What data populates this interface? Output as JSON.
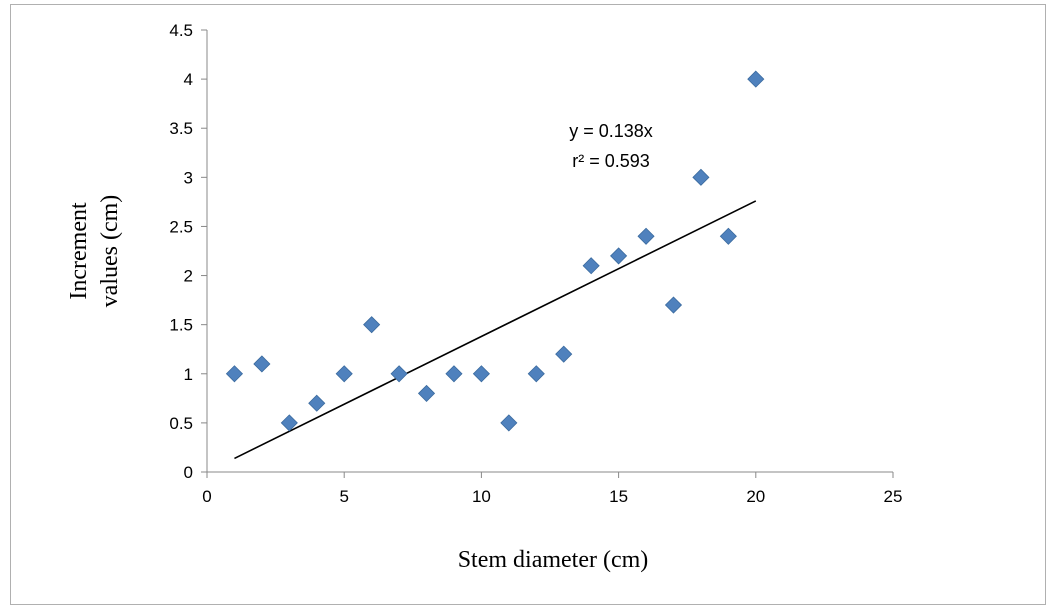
{
  "chart_data": {
    "type": "scatter",
    "title": "",
    "xlabel": "Stem diameter  (cm)",
    "ylabel_lines": [
      "Increment",
      "values (cm)"
    ],
    "xlim": [
      0,
      25
    ],
    "ylim": [
      0,
      4.5
    ],
    "x_ticks": [
      "0",
      "5",
      "10",
      "15",
      "20",
      "25"
    ],
    "y_ticks": [
      "0",
      "0.5",
      "1",
      "1.5",
      "2",
      "2.5",
      "3",
      "3.5",
      "4",
      "4.5"
    ],
    "grid": false,
    "legend": "none",
    "marker_color": "#4F81BD",
    "series": [
      {
        "x": [
          1,
          2,
          3,
          4,
          5,
          6,
          7,
          8,
          9,
          10,
          11,
          12,
          13,
          14,
          15,
          16,
          17,
          18,
          19,
          20
        ],
        "y": [
          1,
          1.1,
          0.5,
          0.7,
          1,
          1.5,
          1,
          0.8,
          1,
          1,
          0.5,
          1,
          1.2,
          2.1,
          2.2,
          2.4,
          1.7,
          3,
          2.4,
          4
        ]
      }
    ],
    "trendline": {
      "slope": 0.138,
      "x_range": [
        1,
        20
      ],
      "color": "#000000"
    },
    "annotations": [
      "y = 0.138x",
      "r² = 0.593"
    ]
  }
}
